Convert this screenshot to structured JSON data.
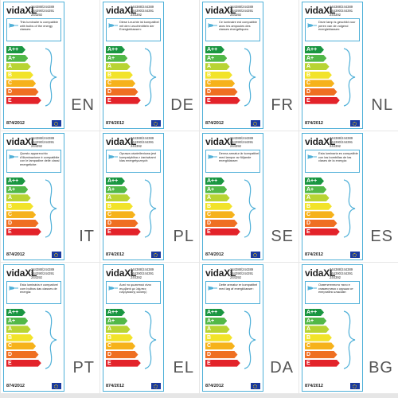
{
  "brand": "vidaXL",
  "codes": [
    "244388/244389",
    "244390/244391",
    "244392"
  ],
  "regulation": "874/2012",
  "classes": [
    {
      "label": "A++",
      "color": "#1a9641"
    },
    {
      "label": "A+",
      "color": "#52b848"
    },
    {
      "label": "A",
      "color": "#b8d433"
    },
    {
      "label": "B",
      "color": "#f2e32a"
    },
    {
      "label": "C",
      "color": "#f6b21b"
    },
    {
      "label": "D",
      "color": "#ef6f22"
    },
    {
      "label": "E",
      "color": "#e3232a"
    }
  ],
  "icons": {
    "bulb": "bulb-icon",
    "flag": "eu-flag-icon",
    "bracket": "bracket-icon"
  },
  "labels": [
    {
      "lang": "EN",
      "text": "This luminaire is compatible with bulbs of the energy classes:"
    },
    {
      "lang": "DE",
      "text": "Diese Leuchte ist kompatibel mit den Leuchtmitteln der Energieklassen:"
    },
    {
      "lang": "FR",
      "text": "Ce luminaire est compatible avec les ampoules des classes énergétiques:"
    },
    {
      "lang": "NL",
      "text": "Deze lamp is geschikt voor peren van de volgend energieklassen:"
    },
    {
      "lang": "IT",
      "text": "Questo apparecchio d'illuminazione è compatibile con le lampadine delle classi energetiche:"
    },
    {
      "lang": "PL",
      "text": "Oprawa oświetleniowa jest kompatybilna z żarówkami klas energetycznych:"
    },
    {
      "lang": "SE",
      "text": "Denna armatur är kompatibel med lampor av följande energiklasser:"
    },
    {
      "lang": "ES",
      "text": "Esta luminaria es compatible con las bombillas de las clases de la energía:"
    },
    {
      "lang": "PT",
      "text": "Esta luminária é compatível com bulbos das classes de energia:"
    },
    {
      "lang": "EL",
      "text": "Αυτό το φωτιστικό είναι συμβατό με λάμπες ενεργειακής κλάσης:"
    },
    {
      "lang": "DA",
      "text": "Dette armatur er kompatibel med løg af energiklasser:"
    },
    {
      "lang": "BG",
      "text": "Осветителното тяло е съвместимо с крушки от енергийни класове:"
    }
  ]
}
